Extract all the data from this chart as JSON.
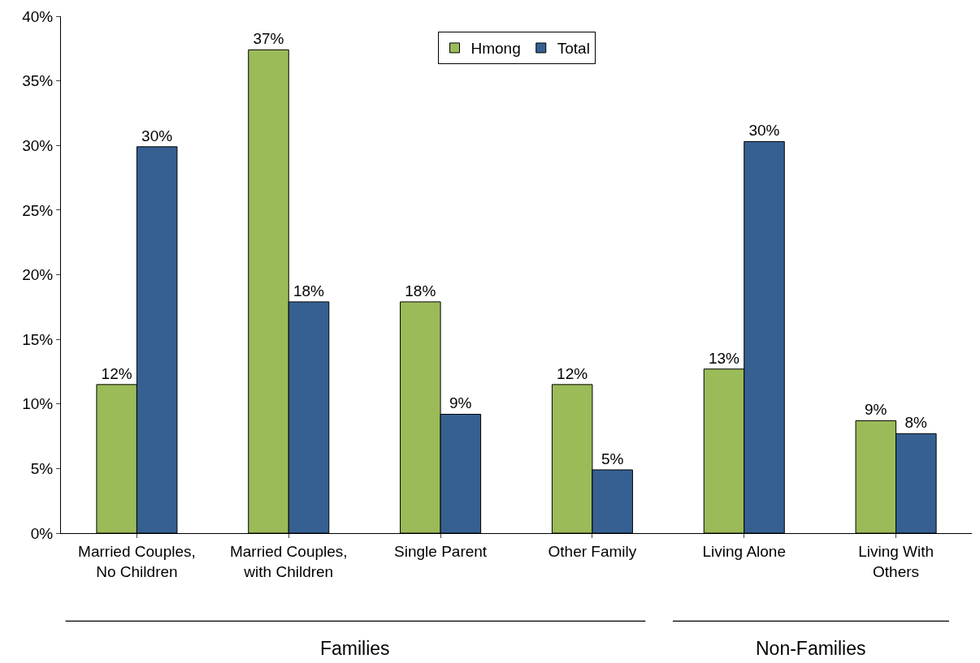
{
  "chart_data": {
    "type": "bar",
    "categories": [
      "Married Couples,\nNo Children",
      "Married Couples,\nwith Children",
      "Single Parent",
      "Other Family",
      "Living Alone",
      "Living With\nOthers"
    ],
    "series": [
      {
        "name": "Hmong",
        "color": "#9bbb59",
        "values": [
          11.5,
          37.4,
          17.9,
          11.5,
          12.7,
          8.7
        ],
        "value_labels": [
          "12%",
          "37%",
          "18%",
          "12%",
          "13%",
          "9%"
        ]
      },
      {
        "name": "Total",
        "color": "#366092",
        "values": [
          29.9,
          17.9,
          9.2,
          4.9,
          30.3,
          7.7
        ],
        "value_labels": [
          "30%",
          "18%",
          "9%",
          "5%",
          "30%",
          "8%"
        ]
      }
    ],
    "ylim": [
      0,
      40
    ],
    "yticks": [
      {
        "value": 0,
        "label": "0%"
      },
      {
        "value": 5,
        "label": "5%"
      },
      {
        "value": 10,
        "label": "10%"
      },
      {
        "value": 15,
        "label": "15%"
      },
      {
        "value": 20,
        "label": "20%"
      },
      {
        "value": 25,
        "label": "25%"
      },
      {
        "value": 30,
        "label": "30%"
      },
      {
        "value": 35,
        "label": "35%"
      },
      {
        "value": 40,
        "label": "40%"
      }
    ],
    "annotations": [
      "Families",
      "Non-Families"
    ],
    "legend": "top"
  }
}
